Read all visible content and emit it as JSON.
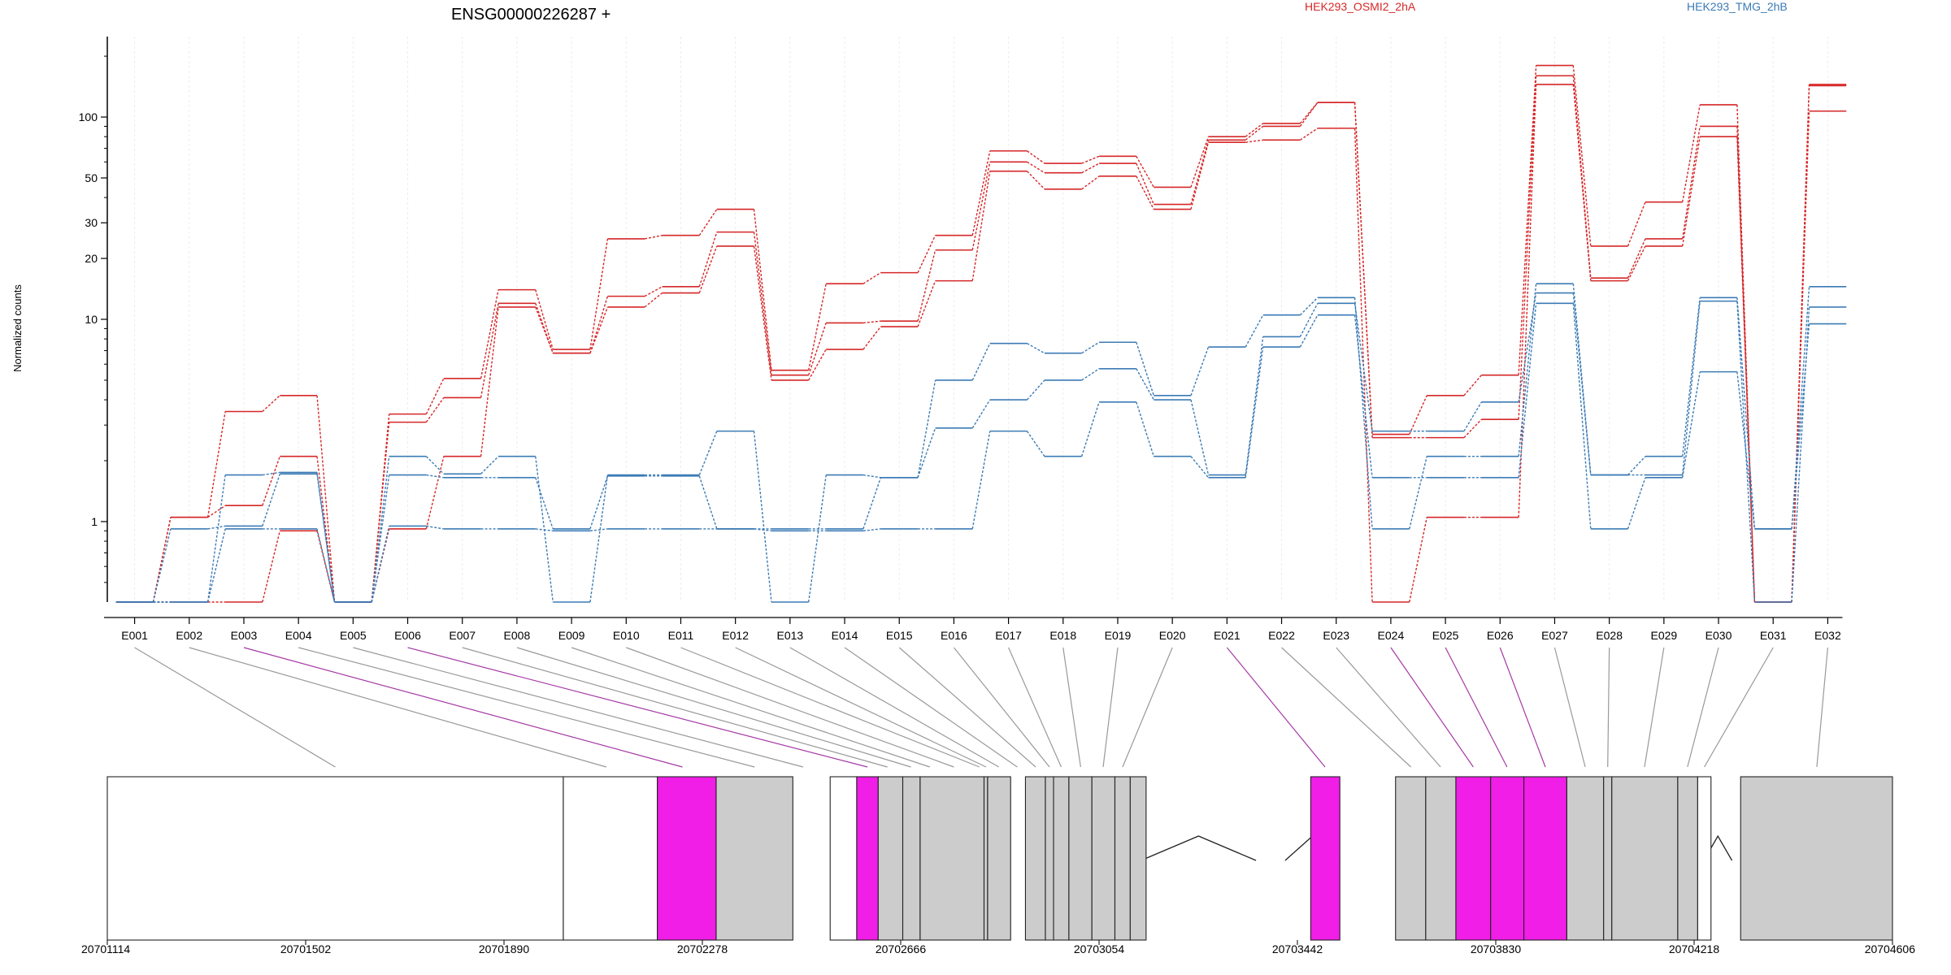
{
  "chart_data": {
    "type": "line",
    "title": "ENSG00000226287 +",
    "ylabel": "Normalized counts",
    "yscale": "log",
    "ylim": [
      0.4,
      250
    ],
    "yticks": [
      1,
      10,
      20,
      30,
      50,
      100
    ],
    "categories": [
      "E001",
      "E002",
      "E003",
      "E004",
      "E005",
      "E006",
      "E007",
      "E008",
      "E009",
      "E010",
      "E011",
      "E012",
      "E013",
      "E014",
      "E015",
      "E016",
      "E017",
      "E018",
      "E019",
      "E020",
      "E021",
      "E022",
      "E023",
      "E024",
      "E025",
      "E026",
      "E027",
      "E028",
      "E029",
      "E030",
      "E031",
      "E032"
    ],
    "legend": {
      "placement": "top",
      "entries": [
        {
          "name": "HEK293_OSMI2_2hA",
          "color": "#d62728"
        },
        {
          "name": "HEK293_TMG_2hB",
          "color": "#3b7bb5"
        }
      ]
    },
    "series": [
      {
        "group": "HEK293_OSMI2_2hA",
        "color": "#d62728",
        "values": [
          0.4,
          1.05,
          3.5,
          4.2,
          0.4,
          3.4,
          5.1,
          14,
          7.1,
          25,
          26,
          35,
          5.6,
          15,
          17,
          26,
          68,
          59,
          64,
          45,
          80,
          93,
          118,
          2.7,
          4.2,
          5.3,
          180,
          23,
          38,
          115,
          0.4,
          145
        ]
      },
      {
        "group": "HEK293_OSMI2_2hA",
        "color": "#d62728",
        "values": [
          0.4,
          1.05,
          1.2,
          2.1,
          0.4,
          3.1,
          4.1,
          12,
          6.8,
          13,
          14.5,
          27,
          5.3,
          9.6,
          9.8,
          22,
          60,
          53,
          59,
          37,
          77,
          90,
          118,
          2.6,
          2.6,
          3.2,
          160,
          16,
          25,
          90,
          0.4,
          143
        ]
      },
      {
        "group": "HEK293_OSMI2_2hA",
        "color": "#d62728",
        "values": [
          0.4,
          0.4,
          0.4,
          0.9,
          0.4,
          0.92,
          2.1,
          11.5,
          6.8,
          11.5,
          13.5,
          23,
          5.0,
          7.1,
          9.2,
          15.5,
          54,
          44,
          51,
          35,
          75,
          77,
          88,
          0.4,
          1.05,
          1.05,
          145,
          15.5,
          23,
          80,
          0.4,
          107
        ]
      },
      {
        "group": "HEK293_TMG_2hB",
        "color": "#3b7bb5",
        "values": [
          0.4,
          0.4,
          1.7,
          1.75,
          0.4,
          2.1,
          1.72,
          2.1,
          0.4,
          1.7,
          1.7,
          2.8,
          0.4,
          1.7,
          1.65,
          5.0,
          7.6,
          6.8,
          7.7,
          4.2,
          7.3,
          10.5,
          12.8,
          0.92,
          2.1,
          2.1,
          15,
          1.7,
          2.1,
          12.8,
          0.92,
          14.5
        ]
      },
      {
        "group": "HEK293_TMG_2hB",
        "color": "#3b7bb5",
        "values": [
          0.4,
          0.92,
          0.95,
          1.72,
          0.4,
          1.7,
          1.65,
          1.65,
          0.92,
          1.68,
          1.68,
          0.92,
          0.92,
          0.92,
          1.65,
          2.9,
          4.0,
          5.0,
          5.7,
          4.0,
          1.7,
          8.2,
          12,
          2.8,
          2.8,
          3.9,
          13.5,
          1.7,
          1.7,
          12.3,
          0.4,
          11.5
        ]
      },
      {
        "group": "HEK293_TMG_2hB",
        "color": "#3b7bb5",
        "values": [
          0.4,
          0.4,
          0.92,
          0.92,
          0.4,
          0.95,
          0.92,
          0.92,
          0.9,
          0.92,
          0.92,
          0.92,
          0.9,
          0.9,
          0.92,
          0.92,
          2.8,
          2.1,
          3.9,
          2.1,
          1.65,
          7.3,
          10.5,
          1.65,
          1.65,
          1.65,
          12,
          0.92,
          1.65,
          5.5,
          0.92,
          9.5
        ]
      }
    ],
    "genomic_axis": {
      "range": [
        20701114,
        20704606
      ],
      "ticks": [
        20701114,
        20701502,
        20701890,
        20702278,
        20702666,
        20703054,
        20703442,
        20703830,
        20704218,
        20704606
      ]
    },
    "gene_model": {
      "introns": [
        [
          20701964,
          20702036
        ],
        [
          20703136,
          20703361
        ],
        [
          20703418,
          20703525
        ],
        [
          20704237,
          20704292
        ]
      ],
      "exons": [
        {
          "start": 20701114,
          "end": 20702006,
          "fill": "#ffffff",
          "highlight": false
        },
        {
          "start": 20702006,
          "end": 20702190,
          "fill": "#ffffff",
          "highlight": false
        },
        {
          "start": 20702190,
          "end": 20702305,
          "fill": "#f01ee6",
          "highlight": true
        },
        {
          "start": 20702305,
          "end": 20702455,
          "fill": "#cccccc",
          "highlight": false
        },
        {
          "start": 20702528,
          "end": 20702580,
          "fill": "#ffffff",
          "highlight": false
        },
        {
          "start": 20702580,
          "end": 20702622,
          "fill": "#f01ee6",
          "highlight": true
        },
        {
          "start": 20702622,
          "end": 20702670,
          "fill": "#cccccc",
          "highlight": false
        },
        {
          "start": 20702670,
          "end": 20702704,
          "fill": "#cccccc",
          "highlight": false
        },
        {
          "start": 20702704,
          "end": 20702829,
          "fill": "#cccccc",
          "highlight": false
        },
        {
          "start": 20702829,
          "end": 20702836,
          "fill": "#cccccc",
          "highlight": false
        },
        {
          "start": 20702836,
          "end": 20702881,
          "fill": "#cccccc",
          "highlight": false
        },
        {
          "start": 20702910,
          "end": 20702949,
          "fill": "#cccccc",
          "highlight": false
        },
        {
          "start": 20702949,
          "end": 20702965,
          "fill": "#cccccc",
          "highlight": false
        },
        {
          "start": 20702965,
          "end": 20702995,
          "fill": "#cccccc",
          "highlight": false
        },
        {
          "start": 20702995,
          "end": 20703040,
          "fill": "#cccccc",
          "highlight": false
        },
        {
          "start": 20703040,
          "end": 20703085,
          "fill": "#cccccc",
          "highlight": false
        },
        {
          "start": 20703085,
          "end": 20703115,
          "fill": "#cccccc",
          "highlight": false
        },
        {
          "start": 20703115,
          "end": 20703146,
          "fill": "#cccccc",
          "highlight": false
        },
        {
          "start": 20703468,
          "end": 20703525,
          "fill": "#f01ee6",
          "highlight": true
        },
        {
          "start": 20703634,
          "end": 20703693,
          "fill": "#cccccc",
          "highlight": false
        },
        {
          "start": 20703693,
          "end": 20703752,
          "fill": "#cccccc",
          "highlight": false
        },
        {
          "start": 20703752,
          "end": 20703820,
          "fill": "#f01ee6",
          "highlight": true
        },
        {
          "start": 20703820,
          "end": 20703885,
          "fill": "#f01ee6",
          "highlight": true
        },
        {
          "start": 20703885,
          "end": 20703969,
          "fill": "#f01ee6",
          "highlight": true
        },
        {
          "start": 20703969,
          "end": 20704041,
          "fill": "#cccccc",
          "highlight": false
        },
        {
          "start": 20704041,
          "end": 20704057,
          "fill": "#cccccc",
          "highlight": false
        },
        {
          "start": 20704057,
          "end": 20704186,
          "fill": "#cccccc",
          "highlight": false
        },
        {
          "start": 20704186,
          "end": 20704225,
          "fill": "#cccccc",
          "highlight": false
        },
        {
          "start": 20704225,
          "end": 20704251,
          "fill": "#ffffff",
          "highlight": false
        },
        {
          "start": 20704309,
          "end": 20704606,
          "fill": "#cccccc",
          "highlight": false
        }
      ],
      "exon_links": [
        {
          "bin": "E001",
          "pos": 20701560,
          "highlight": false
        },
        {
          "bin": "E002",
          "pos": 20702090,
          "highlight": false
        },
        {
          "bin": "E003",
          "pos": 20702239,
          "highlight": true
        },
        {
          "bin": "E004",
          "pos": 20702380,
          "highlight": false
        },
        {
          "bin": "E005",
          "pos": 20702475,
          "highlight": false
        },
        {
          "bin": "E006",
          "pos": 20702601,
          "highlight": true
        },
        {
          "bin": "E007",
          "pos": 20702640,
          "highlight": false
        },
        {
          "bin": "E008",
          "pos": 20702686,
          "highlight": false
        },
        {
          "bin": "E009",
          "pos": 20702723,
          "highlight": false
        },
        {
          "bin": "E010",
          "pos": 20702770,
          "highlight": false
        },
        {
          "bin": "E011",
          "pos": 20702820,
          "highlight": false
        },
        {
          "bin": "E012",
          "pos": 20702833,
          "highlight": false
        },
        {
          "bin": "E013",
          "pos": 20702858,
          "highlight": false
        },
        {
          "bin": "E014",
          "pos": 20702894,
          "highlight": false
        },
        {
          "bin": "E015",
          "pos": 20702930,
          "highlight": false
        },
        {
          "bin": "E016",
          "pos": 20702957,
          "highlight": false
        },
        {
          "bin": "E017",
          "pos": 20702980,
          "highlight": false
        },
        {
          "bin": "E018",
          "pos": 20703018,
          "highlight": false
        },
        {
          "bin": "E019",
          "pos": 20703062,
          "highlight": false
        },
        {
          "bin": "E020",
          "pos": 20703100,
          "highlight": false
        },
        {
          "bin": "E021",
          "pos": 20703496,
          "highlight": true
        },
        {
          "bin": "E022",
          "pos": 20703664,
          "highlight": false
        },
        {
          "bin": "E023",
          "pos": 20703722,
          "highlight": false
        },
        {
          "bin": "E024",
          "pos": 20703786,
          "highlight": true
        },
        {
          "bin": "E025",
          "pos": 20703852,
          "highlight": true
        },
        {
          "bin": "E026",
          "pos": 20703927,
          "highlight": true
        },
        {
          "bin": "E027",
          "pos": 20704005,
          "highlight": false
        },
        {
          "bin": "E028",
          "pos": 20704049,
          "highlight": false
        },
        {
          "bin": "E029",
          "pos": 20704121,
          "highlight": false
        },
        {
          "bin": "E030",
          "pos": 20704205,
          "highlight": false
        },
        {
          "bin": "E031",
          "pos": 20704238,
          "highlight": false
        },
        {
          "bin": "E032",
          "pos": 20704458,
          "highlight": false
        }
      ]
    }
  }
}
